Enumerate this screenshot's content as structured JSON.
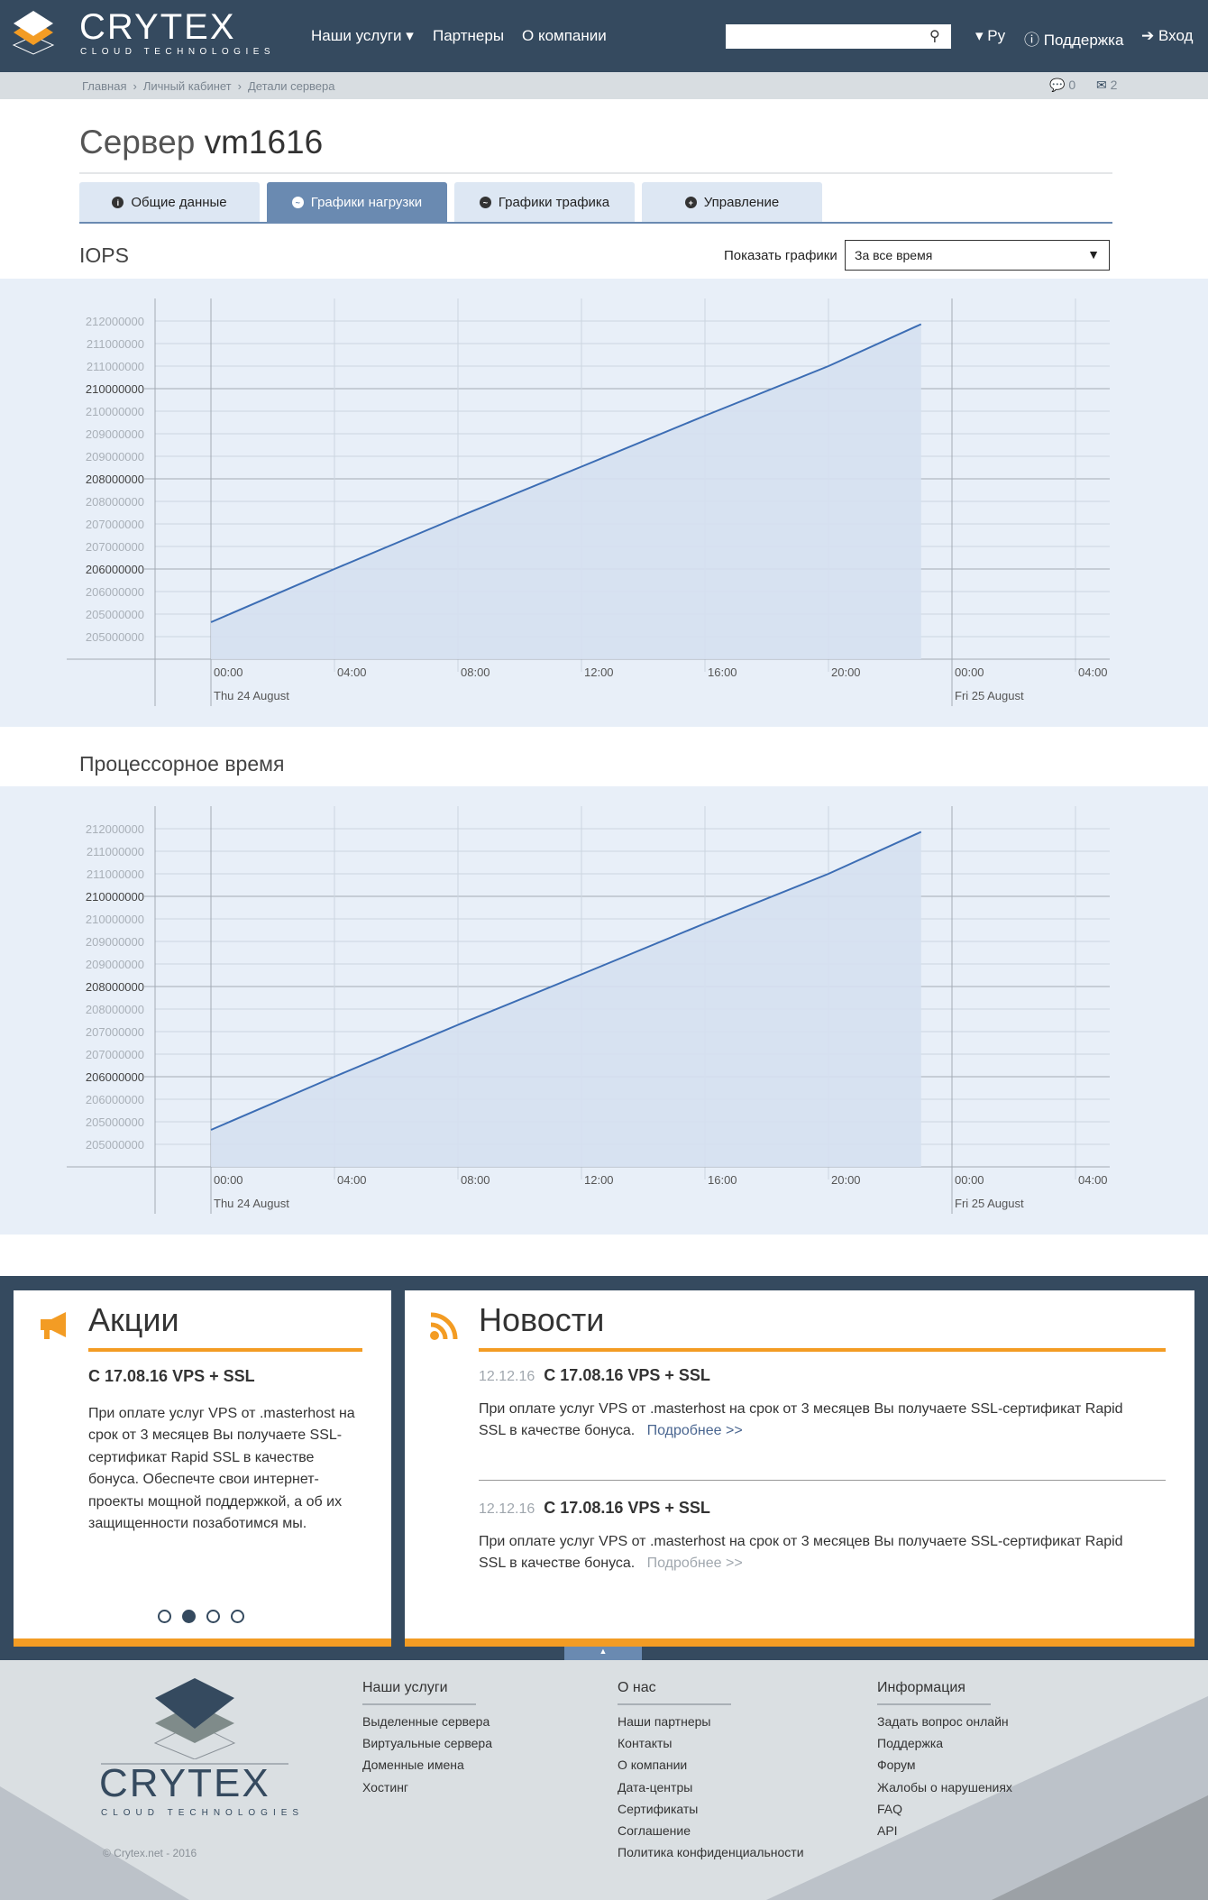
{
  "header": {
    "logo_text": "CRYTEX",
    "logo_sub": "CLOUD TECHNOLOGIES",
    "nav": [
      "Наши услуги",
      "Партнеры",
      "О компании"
    ],
    "search_placeholder": "",
    "lang": "Ру",
    "support": "Поддержка",
    "login": "Вход"
  },
  "breadcrumb": {
    "items": [
      "Главная",
      "Личный кабинет",
      "Детали сервера"
    ],
    "comments_count": "0",
    "messages_count": "2"
  },
  "page": {
    "title_prefix": "Сервер",
    "title_name": "vm1616"
  },
  "tabs": [
    {
      "label": "Общие данные",
      "icon": "info-icon",
      "active": false
    },
    {
      "label": "Графики нагрузки",
      "icon": "chart-icon",
      "active": true
    },
    {
      "label": "Графики трафика",
      "icon": "chart-icon",
      "active": false
    },
    {
      "label": "Управление",
      "icon": "plus-icon",
      "active": false
    }
  ],
  "period": {
    "label": "Показать графики",
    "selected": "За все время"
  },
  "sections": [
    "IOPS",
    "Процессорное время"
  ],
  "colors": {
    "header": "#354a5f",
    "accent": "#f39c24",
    "line": "#3c6db4",
    "fill": "#d5e0f0",
    "chart_bg": "#e8eff8",
    "tab_active": "#6a8ab1"
  },
  "chart_data": [
    {
      "type": "area",
      "title": "IOPS",
      "xtick_labels": [
        "00:00",
        "04:00",
        "08:00",
        "12:00",
        "16:00",
        "20:00",
        "00:00",
        "04:00"
      ],
      "date_labels": [
        "Thu 24 August",
        "Fri 25 August"
      ],
      "ytick_labels": [
        "212000000",
        "211000000",
        "211000000",
        "210000000",
        "210000000",
        "209000000",
        "209000000",
        "208000000",
        "208000000",
        "207000000",
        "207000000",
        "206000000",
        "206000000",
        "205000000",
        "205000000"
      ],
      "ylim": [
        204500000,
        212500000
      ],
      "grid": true,
      "points": [
        {
          "x": "Thu 24 August 00:00",
          "y": 205320000
        },
        {
          "x": "Thu 24 August 04:00",
          "y": 206500000
        },
        {
          "x": "Thu 24 August 08:00",
          "y": 207650000
        },
        {
          "x": "Thu 24 August 12:00",
          "y": 208770000
        },
        {
          "x": "Thu 24 August 16:00",
          "y": 209900000
        },
        {
          "x": "Thu 24 August 20:00",
          "y": 211000000
        },
        {
          "x": "Thu 24 August 23:00",
          "y": 211930000
        }
      ]
    },
    {
      "type": "area",
      "title": "Процессорное время",
      "xtick_labels": [
        "00:00",
        "04:00",
        "08:00",
        "12:00",
        "16:00",
        "20:00",
        "00:00",
        "04:00"
      ],
      "date_labels": [
        "Thu 24 August",
        "Fri 25 August"
      ],
      "ytick_labels": [
        "212000000",
        "211000000",
        "211000000",
        "210000000",
        "210000000",
        "209000000",
        "209000000",
        "208000000",
        "208000000",
        "207000000",
        "207000000",
        "206000000",
        "206000000",
        "205000000",
        "205000000"
      ],
      "ylim": [
        204500000,
        212500000
      ],
      "grid": true,
      "points": [
        {
          "x": "Thu 24 August 00:00",
          "y": 205320000
        },
        {
          "x": "Thu 24 August 04:00",
          "y": 206500000
        },
        {
          "x": "Thu 24 August 08:00",
          "y": 207650000
        },
        {
          "x": "Thu 24 August 12:00",
          "y": 208770000
        },
        {
          "x": "Thu 24 August 16:00",
          "y": 209900000
        },
        {
          "x": "Thu 24 August 20:00",
          "y": 211000000
        },
        {
          "x": "Thu 24 August 23:00",
          "y": 211930000
        }
      ]
    }
  ],
  "promo": {
    "title": "Акции",
    "heading": "С 17.08.16 VPS + SSL",
    "text": "При оплате услуг VPS от .masterhost на срок от 3 месяцев Вы получаете SSL-сертификат Rapid SSL в качестве бонуса. Обеспечте свои интернет-проекты мощной поддержкой, а об их защищенности позаботимся мы.",
    "active_dot": 1
  },
  "news": {
    "title": "Новости",
    "items": [
      {
        "date": "12.12.16",
        "heading": "С 17.08.16 VPS + SSL",
        "text": "При оплате услуг VPS от .masterhost на срок от 3 месяцев Вы получаете SSL-сертификат Rapid SSL в качестве бонуса.",
        "more": "Подробнее >>"
      },
      {
        "date": "12.12.16",
        "heading": "С 17.08.16 VPS + SSL",
        "text": "При оплате услуг VPS от .masterhost на срок от 3 месяцев Вы получаете SSL-сертификат Rapid SSL в качестве бонуса.",
        "more": "Подробнее >>"
      }
    ]
  },
  "footer": {
    "copyright": "© Crytex.net - 2016",
    "columns": [
      {
        "title": "Наши услуги",
        "links": [
          "Выделенные сервера",
          "Виртуальные сервера",
          "Доменные имена",
          "Хостинг"
        ]
      },
      {
        "title": "О нас",
        "links": [
          "Наши партнеры",
          "Контакты",
          "О компании",
          "Дата-центры",
          "Сертификаты",
          "Соглашение",
          "Политика конфиденциальности"
        ]
      },
      {
        "title": "Информация",
        "links": [
          "Задать вопрос онлайн",
          "Поддержка",
          "Форум",
          "Жалобы о нарушениях",
          "FAQ",
          "API"
        ]
      }
    ]
  }
}
